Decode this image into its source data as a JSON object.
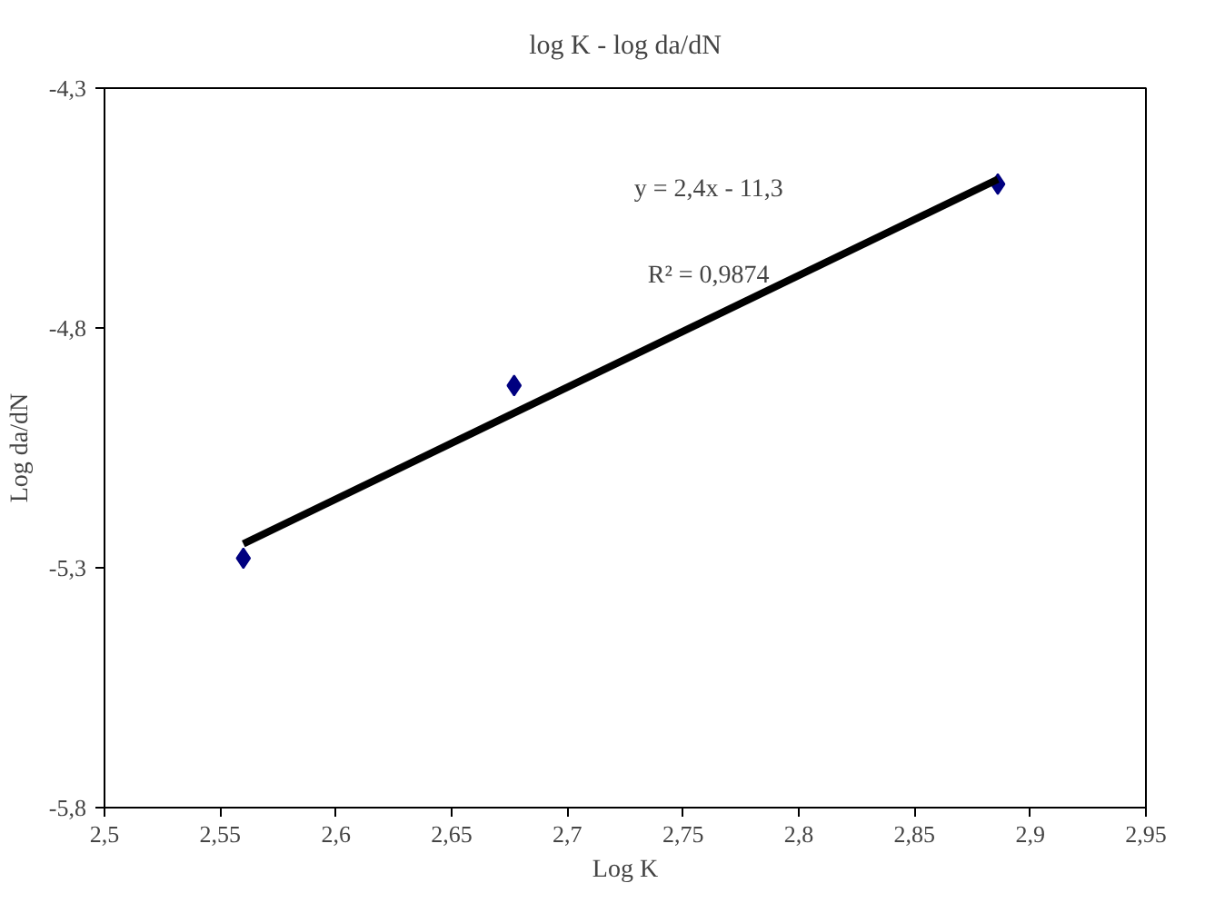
{
  "chart_data": {
    "type": "scatter",
    "title": "log K - log da/dN",
    "xlabel": "Log K",
    "ylabel": "Log da/dN",
    "series": [
      {
        "color": "#000080",
        "marker": "diamond",
        "x": [
          2.56,
          2.677,
          2.886
        ],
        "values": [
          -5.28,
          -4.92,
          -4.5
        ]
      },
      {
        "type": "line",
        "color": "#000000",
        "marker": "none",
        "x": [
          2.56,
          2.886
        ],
        "values": [
          -5.25,
          -4.49
        ]
      }
    ],
    "annotations": [
      "y = 2,4x - 11,3",
      "R² = 0,9874"
    ],
    "xlim": [
      2.5,
      2.95
    ],
    "ylim": [
      -5.8,
      -4.3
    ],
    "xticks": [
      {
        "value": 2.5,
        "label": "2,5"
      },
      {
        "value": 2.55,
        "label": "2,55"
      },
      {
        "value": 2.6,
        "label": "2,6"
      },
      {
        "value": 2.65,
        "label": "2,65"
      },
      {
        "value": 2.7,
        "label": "2,7"
      },
      {
        "value": 2.75,
        "label": "2,75"
      },
      {
        "value": 2.8,
        "label": "2,8"
      },
      {
        "value": 2.85,
        "label": "2,85"
      },
      {
        "value": 2.9,
        "label": "2,9"
      },
      {
        "value": 2.95,
        "label": "2,95"
      }
    ],
    "yticks": [
      {
        "value": -5.8,
        "label": "-5,8"
      },
      {
        "value": -5.3,
        "label": "-5,3"
      },
      {
        "value": -4.8,
        "label": "-4,8"
      },
      {
        "value": -4.3,
        "label": "-4,3"
      }
    ],
    "grid": false
  }
}
